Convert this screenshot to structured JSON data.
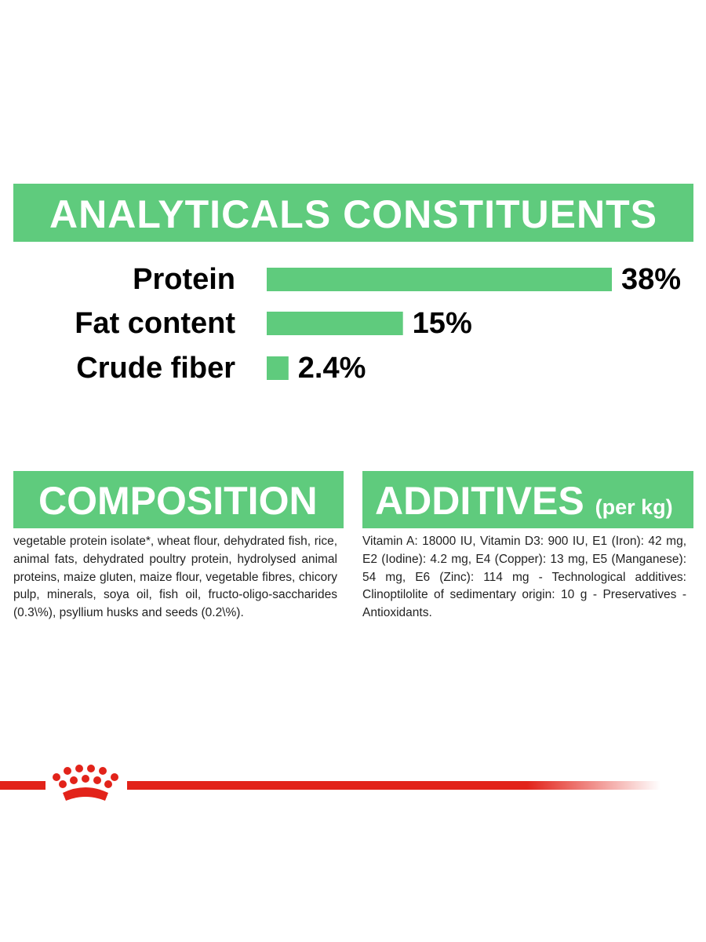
{
  "chart_data": {
    "type": "bar",
    "orientation": "horizontal",
    "title": "ANALYTICALS CONSTITUENTS",
    "categories": [
      "Protein",
      "Fat content",
      "Crude fiber"
    ],
    "values": [
      38,
      15,
      2.4
    ],
    "value_labels": [
      "38%",
      "15%",
      "2.4%"
    ],
    "color": "#5fcb7d"
  },
  "composition": {
    "title": "COMPOSITION",
    "text": "vegetable protein isolate*, wheat flour, dehydrated fish, rice, animal fats, dehydrated poultry protein, hydrolysed animal proteins, maize gluten, maize flour, vegetable fibres, chicory pulp, minerals, soya oil, fish oil, fructo-oligo-saccharides (0.3\\%), psyllium husks and seeds (0.2\\%)."
  },
  "additives": {
    "title": "ADDITIVES",
    "subtitle": "(per kg)",
    "text": "Vitamin A: 18000 IU, Vitamin D3: 900 IU, E1 (Iron): 42 mg, E2 (Iodine): 4.2 mg, E4 (Copper): 13 mg, E5 (Manganese): 54 mg, E6 (Zinc): 114 mg - Technological additives: Clinoptilolite of sedimentary origin: 10 g - Preservatives - Antioxidants."
  }
}
